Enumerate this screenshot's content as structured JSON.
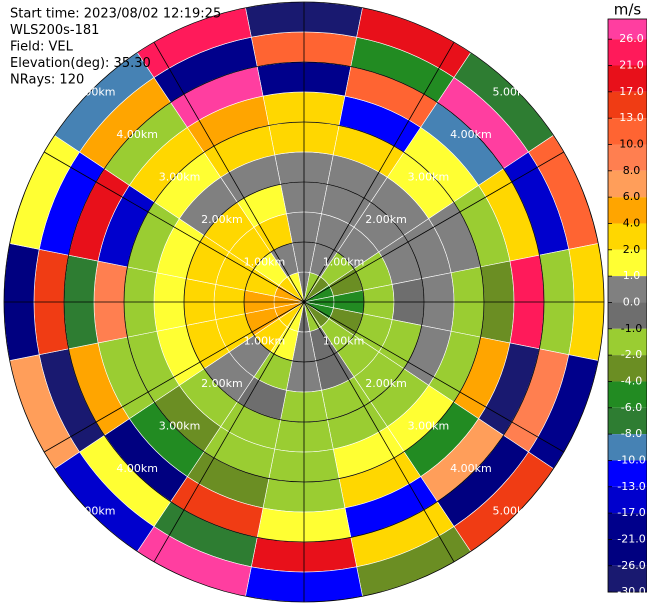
{
  "chart_data": {
    "type": "ppi",
    "header": [
      "Start time: 2023/08/02 12:19:25",
      "WLS200s-181",
      "Field: VEL",
      "Elevation(deg): 35.30",
      "NRays: 120"
    ],
    "colorbar_label": "m/s",
    "colorbar_ticks": [
      {
        "value": 26,
        "label": "26.0"
      },
      {
        "value": 21,
        "label": "21.0"
      },
      {
        "value": 17,
        "label": "17.0"
      },
      {
        "value": 13,
        "label": "13.0"
      },
      {
        "value": 10,
        "label": "10.0"
      },
      {
        "value": 8,
        "label": "8.0"
      },
      {
        "value": 6,
        "label": "6.0"
      },
      {
        "value": 4,
        "label": "4.0"
      },
      {
        "value": 2,
        "label": "2.0"
      },
      {
        "value": 1,
        "label": "1.0"
      },
      {
        "value": 0,
        "label": "0.0"
      },
      {
        "value": -1,
        "label": "-1.0"
      },
      {
        "value": -2,
        "label": "-2.0"
      },
      {
        "value": -4,
        "label": "-4.0"
      },
      {
        "value": -6,
        "label": "-6.0"
      },
      {
        "value": -8,
        "label": "-8.0"
      },
      {
        "value": -10,
        "label": "-10.0"
      },
      {
        "value": -13,
        "label": "-13.0"
      },
      {
        "value": -17,
        "label": "-17.0"
      },
      {
        "value": -21,
        "label": "-21.0"
      },
      {
        "value": -26,
        "label": "-26.0"
      },
      {
        "value": -30,
        "label": "-30.0"
      }
    ],
    "colors": [
      "#ff3ea0",
      "#ff1a5a",
      "#e8101a",
      "#f03c14",
      "#ff6432",
      "#ff7f50",
      "#ff9e5a",
      "#ffa500",
      "#ffd700",
      "#ffff33",
      "#808080",
      "#6e6e6e",
      "#9acd32",
      "#6b8e23",
      "#228b22",
      "#2e7d32",
      "#4682b4",
      "#0000ff",
      "#0000cd",
      "#00008b",
      "#000080",
      "#191970"
    ],
    "rlim": [
      0,
      5
    ],
    "rticks": [
      {
        "value": 1,
        "label": "1.00km"
      },
      {
        "value": 2,
        "label": "2.00km"
      },
      {
        "value": 3,
        "label": "3.00km"
      },
      {
        "value": 4,
        "label": "4.00km"
      },
      {
        "value": 5,
        "label": "5.00km"
      }
    ],
    "range_edges": [
      0,
      0.5,
      1,
      1.5,
      2,
      2.5,
      3,
      3.5,
      4,
      4.5,
      5
    ],
    "azimuths": [
      0,
      22.5,
      45,
      67.5,
      90,
      112.5,
      135,
      157.5,
      180,
      202.5,
      225,
      247.5,
      270,
      292.5,
      315,
      337.5
    ],
    "values": [
      [
        0.5,
        -1.5,
        -3,
        -5,
        -5,
        -5,
        -3,
        -1.5,
        -0.5,
        1.5,
        3,
        5,
        5,
        5,
        3,
        1.5
      ],
      [
        0.5,
        0.3,
        -1.5,
        -3,
        -5,
        -3,
        -1.5,
        -0.5,
        0.5,
        1.5,
        3,
        5,
        5,
        3,
        1.5,
        0.5
      ],
      [
        0.5,
        0.5,
        0.3,
        -1.5,
        -1.5,
        -1.5,
        -1.5,
        -0.5,
        0.5,
        -1.5,
        0.5,
        3,
        3,
        3,
        3,
        3
      ],
      [
        0.5,
        0.5,
        0.5,
        0.5,
        -0.5,
        -1.5,
        -1.5,
        -1.5,
        -1.5,
        -0.5,
        0.5,
        3,
        3,
        3,
        3,
        1.5
      ],
      [
        0.5,
        0.5,
        0.5,
        0.5,
        0.5,
        0.5,
        -1.5,
        -1.5,
        -1.5,
        -1.5,
        -1.5,
        1.5,
        1.5,
        1.5,
        0.5,
        0.5
      ],
      [
        3,
        3,
        1.5,
        0.5,
        -1.5,
        -1.5,
        1.5,
        1.5,
        -1.5,
        -1.5,
        -3,
        -1.5,
        -1.5,
        -1.5,
        1.5,
        3
      ],
      [
        3,
        -13,
        1.5,
        -1.5,
        -3,
        5,
        -5,
        3,
        -1.5,
        -3,
        -5,
        -1.5,
        9,
        -15,
        3,
        5
      ],
      [
        -19,
        12,
        -9,
        3,
        24,
        -28,
        7,
        -11,
        1.5,
        15,
        -23,
        4.5,
        -7,
        19,
        -1.5,
        28
      ],
      [
        11,
        -5,
        28,
        -15,
        -1.5,
        9,
        -24,
        3,
        19,
        -7,
        1.5,
        -28,
        15,
        -11,
        5,
        -19
      ],
      [
        -28,
        19,
        -7,
        11,
        3,
        -19,
        15,
        -3,
        -11,
        28,
        -15,
        7,
        -24,
        1.5,
        -9,
        24
      ]
    ]
  }
}
